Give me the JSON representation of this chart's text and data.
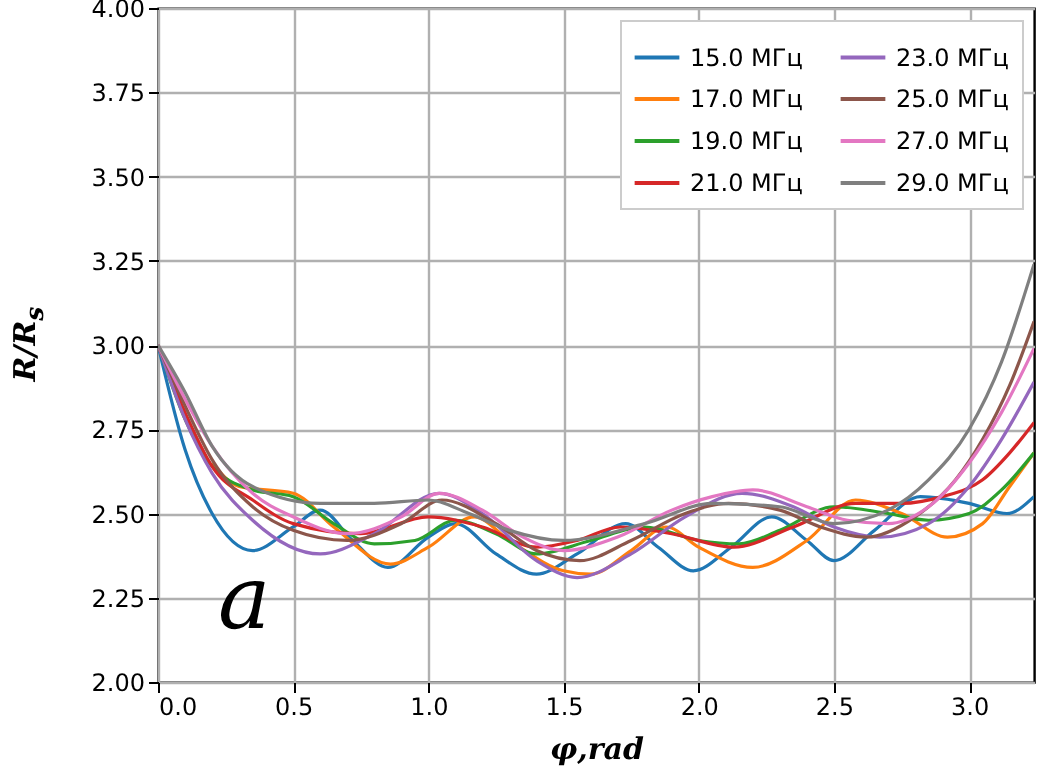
{
  "chart_data": {
    "type": "line",
    "xlabel": "φ,rad",
    "ylabel": "R/R$_{s}$",
    "annotations": [
      "a"
    ],
    "xlim": [
      0,
      3.24
    ],
    "ylim": [
      2,
      4
    ],
    "xticks": [
      {
        "value": 0,
        "label": "0.0"
      },
      0.5,
      {
        "value": 1,
        "label": "1.0"
      },
      1.5,
      {
        "value": 2,
        "label": "2.0"
      },
      2.5,
      {
        "value": 3,
        "label": "3.0"
      }
    ],
    "yticks": [
      {
        "value": 2,
        "label": "2.00"
      },
      2.25,
      {
        "value": 2.5,
        "label": "2.50"
      },
      2.75,
      {
        "value": 3,
        "label": "3.00"
      },
      3.25,
      {
        "value": 3.5,
        "label": "3.50"
      },
      3.75,
      {
        "value": 4,
        "label": "4.00"
      }
    ],
    "grid": true,
    "legend": "top right",
    "marker": "none",
    "line_style": "solid",
    "series": [
      {
        "name": "15.0 МГц",
        "color": "#1f77b4",
        "x": [
          0,
          0.1,
          0.2,
          0.35,
          0.5,
          0.6,
          0.72,
          0.85,
          1.0,
          1.1,
          1.25,
          1.4,
          1.55,
          1.73,
          1.85,
          1.98,
          2.12,
          2.27,
          2.4,
          2.5,
          2.65,
          2.82,
          3.0,
          3.14,
          3.24
        ],
        "values": [
          3.0,
          2.69,
          2.5,
          2.39,
          2.46,
          2.51,
          2.42,
          2.34,
          2.43,
          2.47,
          2.38,
          2.32,
          2.38,
          2.47,
          2.4,
          2.33,
          2.4,
          2.49,
          2.42,
          2.36,
          2.45,
          2.55,
          2.53,
          2.5,
          2.55
        ]
      },
      {
        "name": "17.0 МГц",
        "color": "#ff7f0e",
        "x": [
          0.2,
          0.3,
          0.5,
          0.65,
          0.86,
          1.0,
          1.17,
          1.3,
          1.5,
          1.6,
          1.75,
          1.88,
          2.0,
          2.2,
          2.4,
          2.58,
          2.75,
          2.92,
          3.05,
          3.15,
          3.24
        ],
        "values": [
          2.65,
          2.58,
          2.56,
          2.46,
          2.35,
          2.4,
          2.49,
          2.42,
          2.33,
          2.32,
          2.39,
          2.46,
          2.4,
          2.34,
          2.42,
          2.54,
          2.5,
          2.43,
          2.47,
          2.58,
          2.68
        ]
      },
      {
        "name": "19.0 МГц",
        "color": "#2ca02c",
        "x": [
          0,
          0.1,
          0.2,
          0.35,
          0.5,
          0.65,
          0.8,
          0.95,
          1.1,
          1.25,
          1.4,
          1.6,
          1.8,
          2.0,
          2.15,
          2.3,
          2.5,
          2.7,
          2.85,
          3.0,
          3.12,
          3.24
        ],
        "values": [
          3.0,
          2.78,
          2.64,
          2.57,
          2.55,
          2.47,
          2.41,
          2.42,
          2.48,
          2.44,
          2.38,
          2.42,
          2.46,
          2.42,
          2.41,
          2.45,
          2.52,
          2.5,
          2.48,
          2.5,
          2.57,
          2.68
        ]
      },
      {
        "name": "21.0 МГц",
        "color": "#d62728",
        "x": [
          0,
          0.1,
          0.2,
          0.35,
          0.5,
          0.75,
          1.0,
          1.2,
          1.4,
          1.55,
          1.71,
          1.9,
          2.13,
          2.35,
          2.58,
          2.75,
          2.9,
          3.05,
          3.15,
          3.24
        ],
        "values": [
          3.0,
          2.8,
          2.64,
          2.54,
          2.47,
          2.44,
          2.49,
          2.46,
          2.4,
          2.42,
          2.46,
          2.44,
          2.4,
          2.46,
          2.53,
          2.53,
          2.55,
          2.6,
          2.68,
          2.77
        ]
      },
      {
        "name": "23.0 МГц",
        "color": "#9467bd",
        "x": [
          0,
          0.1,
          0.2,
          0.35,
          0.6,
          0.8,
          1.04,
          1.2,
          1.4,
          1.55,
          1.75,
          1.95,
          2.16,
          2.35,
          2.5,
          2.67,
          2.85,
          3.0,
          3.12,
          3.24
        ],
        "values": [
          3.0,
          2.78,
          2.62,
          2.48,
          2.38,
          2.44,
          2.56,
          2.5,
          2.36,
          2.31,
          2.38,
          2.49,
          2.56,
          2.52,
          2.46,
          2.43,
          2.47,
          2.58,
          2.72,
          2.89
        ]
      },
      {
        "name": "25.0 МГц",
        "color": "#8c564b",
        "x": [
          0,
          0.1,
          0.2,
          0.35,
          0.5,
          0.7,
          0.9,
          1.05,
          1.25,
          1.4,
          1.56,
          1.75,
          1.95,
          2.11,
          2.3,
          2.45,
          2.62,
          2.8,
          2.95,
          3.05,
          3.15,
          3.24
        ],
        "values": [
          3.0,
          2.82,
          2.66,
          2.52,
          2.45,
          2.42,
          2.47,
          2.54,
          2.47,
          2.39,
          2.36,
          2.42,
          2.5,
          2.53,
          2.51,
          2.46,
          2.43,
          2.49,
          2.6,
          2.72,
          2.88,
          3.07
        ]
      },
      {
        "name": "27.0 МГц",
        "color": "#e377c2",
        "x": [
          0,
          0.1,
          0.2,
          0.35,
          0.5,
          0.7,
          0.9,
          1.04,
          1.2,
          1.35,
          1.5,
          1.7,
          1.9,
          2.05,
          2.2,
          2.4,
          2.55,
          2.7,
          2.85,
          3.0,
          3.12,
          3.24
        ],
        "values": [
          3.0,
          2.84,
          2.7,
          2.56,
          2.49,
          2.44,
          2.49,
          2.56,
          2.51,
          2.43,
          2.39,
          2.43,
          2.51,
          2.55,
          2.57,
          2.52,
          2.48,
          2.47,
          2.52,
          2.65,
          2.8,
          2.99
        ]
      },
      {
        "name": "29.0 МГц",
        "color": "#7f7f7f",
        "x": [
          0,
          0.1,
          0.2,
          0.35,
          0.6,
          0.8,
          1.0,
          1.15,
          1.3,
          1.5,
          1.8,
          2.05,
          2.3,
          2.5,
          2.7,
          2.85,
          3.0,
          3.12,
          3.24
        ],
        "values": [
          3.0,
          2.86,
          2.7,
          2.58,
          2.53,
          2.53,
          2.54,
          2.5,
          2.45,
          2.42,
          2.47,
          2.53,
          2.52,
          2.47,
          2.51,
          2.6,
          2.75,
          2.95,
          3.24
        ]
      }
    ]
  }
}
